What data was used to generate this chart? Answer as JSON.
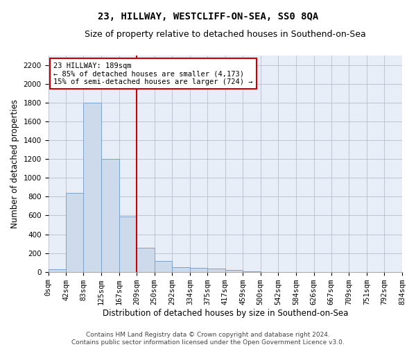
{
  "title": "23, HILLWAY, WESTCLIFF-ON-SEA, SS0 8QA",
  "subtitle": "Size of property relative to detached houses in Southend-on-Sea",
  "xlabel": "Distribution of detached houses by size in Southend-on-Sea",
  "ylabel": "Number of detached properties",
  "bar_color": "#ccdaec",
  "bar_edge_color": "#7ba3cc",
  "grid_color": "#bbbbcc",
  "bg_color": "#e8eef8",
  "annotation_text": "23 HILLWAY: 189sqm\n← 85% of detached houses are smaller (4,173)\n15% of semi-detached houses are larger (724) →",
  "vline_color": "#cc0000",
  "ylim": [
    0,
    2300
  ],
  "yticks": [
    0,
    200,
    400,
    600,
    800,
    1000,
    1200,
    1400,
    1600,
    1800,
    2000,
    2200
  ],
  "bin_edges": [
    0,
    42,
    83,
    125,
    167,
    209,
    250,
    292,
    334,
    375,
    417,
    459,
    500,
    542,
    584,
    626,
    667,
    709,
    751,
    792,
    834
  ],
  "bin_labels": [
    "0sqm",
    "42sqm",
    "83sqm",
    "125sqm",
    "167sqm",
    "209sqm",
    "250sqm",
    "292sqm",
    "334sqm",
    "375sqm",
    "417sqm",
    "459sqm",
    "500sqm",
    "542sqm",
    "584sqm",
    "626sqm",
    "667sqm",
    "709sqm",
    "751sqm",
    "792sqm",
    "834sqm"
  ],
  "bar_values": [
    25,
    840,
    1800,
    1200,
    590,
    260,
    115,
    50,
    45,
    35,
    20,
    5,
    0,
    0,
    0,
    0,
    0,
    0,
    0,
    0
  ],
  "vline_bin": 4,
  "footer": "Contains HM Land Registry data © Crown copyright and database right 2024.\nContains public sector information licensed under the Open Government Licence v3.0.",
  "title_fontsize": 10,
  "subtitle_fontsize": 9,
  "axis_label_fontsize": 8.5,
  "tick_fontsize": 7.5,
  "footer_fontsize": 6.5,
  "ann_fontsize": 7.5
}
